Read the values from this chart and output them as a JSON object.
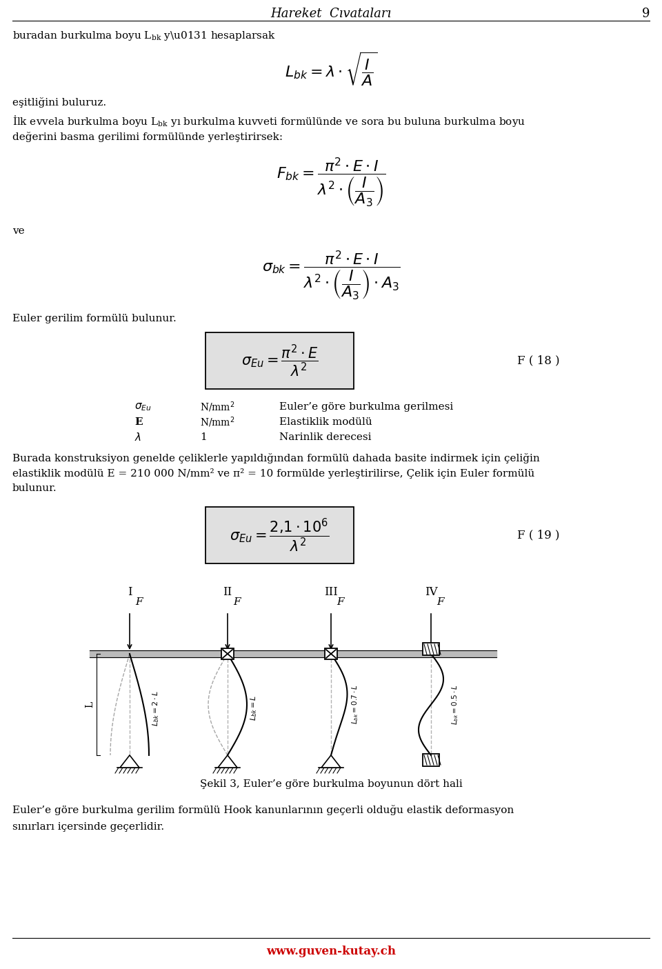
{
  "title": "Hareket  Cıvataları",
  "page_num": "9",
  "bg_color": "#ffffff",
  "para2_line1": "Burada konstruksiyon genelde çeliklerle yapıldığından formülü dahada basite indirmek için çeliğin",
  "para2_line2": "elastiklik modülü E = 210 000 N/mm² ve π² = 10 formülde yerleştirilirse, Çelik için Euler formülü",
  "para2_line3": "bulunur.",
  "fig_label": "Şekil 3, Euler’e göre burkulma boyunun dört hali",
  "footer": "www.guven-kutay.ch",
  "final_line1": "Euler’e göre burkulma gerilim formülü Hook kanunlarının geçerli olduğu elastik deformasyon",
  "final_line2": "sınırları içersinde geçerlidir."
}
